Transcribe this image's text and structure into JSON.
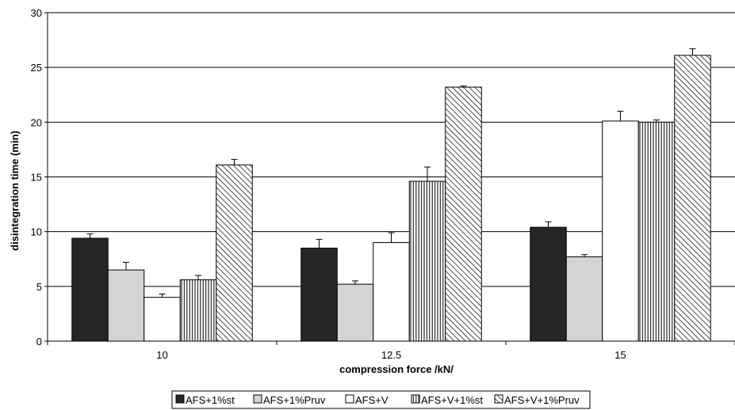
{
  "chart_data": {
    "type": "bar",
    "xlabel": "compression force /kN/",
    "ylabel": "disintegration time  (min)",
    "ylim": [
      0,
      30
    ],
    "y_ticks": [
      0,
      5,
      10,
      15,
      20,
      25,
      30
    ],
    "grid": "horizontal",
    "legend_position": "bottom",
    "categories": [
      "10",
      "12.5",
      "15"
    ],
    "series": [
      {
        "name": "AFS+1%st",
        "fill": "solid-black",
        "color": "#262626",
        "values": [
          9.4,
          8.5,
          10.4
        ],
        "errors": [
          0.4,
          0.8,
          0.5
        ]
      },
      {
        "name": "AFS+1%Pruv",
        "fill": "solid-gray",
        "color": "#d4d4d4",
        "values": [
          6.5,
          5.2,
          7.7
        ],
        "errors": [
          0.7,
          0.3,
          0.2
        ]
      },
      {
        "name": "AFS+V",
        "fill": "white",
        "color": "#ffffff",
        "values": [
          4.0,
          9.0,
          20.1
        ],
        "errors": [
          0.3,
          0.9,
          0.9
        ]
      },
      {
        "name": "AFS+V+1%st",
        "fill": "vertical-lines",
        "color": "#000000",
        "values": [
          5.6,
          14.6,
          20.0
        ],
        "errors": [
          0.4,
          1.3,
          0.2
        ]
      },
      {
        "name": "AFS+V+1%Pruv",
        "fill": "diagonal-hatch",
        "color": "#000000",
        "values": [
          16.1,
          23.2,
          26.1
        ],
        "errors": [
          0.5,
          0.1,
          0.6
        ]
      }
    ]
  }
}
